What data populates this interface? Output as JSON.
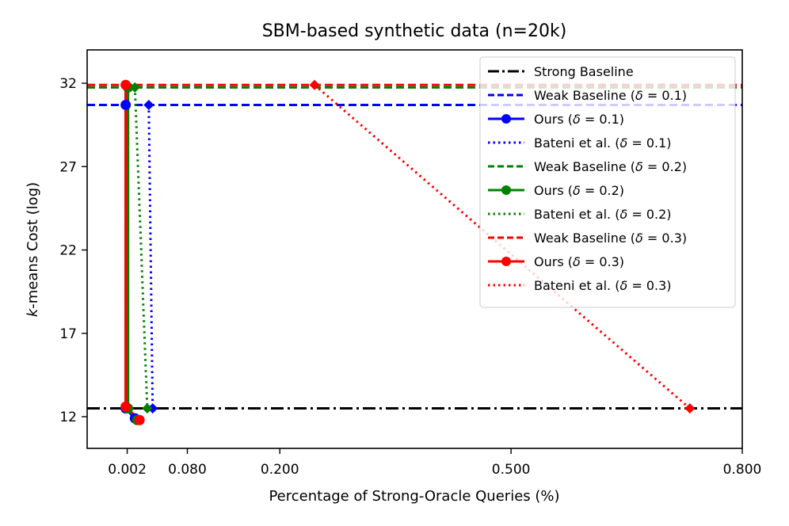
{
  "chart_data": {
    "type": "line",
    "title": "SBM-based synthetic data (n=20k)",
    "xlabel": "Percentage of Strong-Oracle Queries (%)",
    "ylabel": "k-means Cost (log)",
    "ylabel_italic_prefix": "k",
    "ylabel_rest": "-means Cost (log)",
    "x_ticks": [
      "0.002",
      "0.080",
      "0.200",
      "0.500",
      "0.800"
    ],
    "x_tick_values": [
      0.002,
      0.08,
      0.2,
      0.5,
      0.8
    ],
    "y_ticks": [
      "12",
      "17",
      "22",
      "27",
      "32"
    ],
    "y_tick_values": [
      12,
      17,
      22,
      27,
      32
    ],
    "xlim": [
      -0.05,
      0.8
    ],
    "ylim": [
      10.1,
      34.0
    ],
    "grid": false,
    "legend_position": "top-right",
    "series": [
      {
        "name": "Strong Baseline",
        "legend_text": "Strong Baseline",
        "legend_delta": "",
        "color": "#000000",
        "style": "dashdot",
        "marker": "none",
        "hline": 12.5
      },
      {
        "name": "Weak Baseline (δ = 0.1)",
        "legend_text": "Weak Baseline (",
        "legend_delta": "0.1",
        "color": "#0000ff",
        "style": "dashed",
        "marker": "none",
        "hline": 30.7
      },
      {
        "name": "Ours (δ = 0.1)",
        "legend_text": "Ours (",
        "legend_delta": "0.1",
        "color": "#0000ff",
        "style": "solid",
        "marker": "circle",
        "x": [
          0.0,
          0.0,
          0.012
        ],
        "y": [
          30.7,
          12.5,
          11.9
        ]
      },
      {
        "name": "Bateni et al. (δ = 0.1)",
        "legend_text": "Bateni et al. (",
        "legend_delta": "0.1",
        "color": "#0000ff",
        "style": "dotted",
        "marker": "diamond",
        "x": [
          0.03,
          0.035
        ],
        "y": [
          30.7,
          12.5
        ]
      },
      {
        "name": "Weak Baseline (δ = 0.2)",
        "legend_text": "Weak Baseline (",
        "legend_delta": "0.2",
        "color": "#008000",
        "style": "dashed",
        "marker": "none",
        "hline": 31.75
      },
      {
        "name": "Ours (δ = 0.2)",
        "legend_text": "Ours (",
        "legend_delta": "0.2",
        "color": "#008000",
        "style": "solid",
        "marker": "circle",
        "x": [
          0.003,
          0.003,
          0.015
        ],
        "y": [
          31.75,
          12.5,
          11.8
        ]
      },
      {
        "name": "Bateni et al. (δ = 0.2)",
        "legend_text": "Bateni et al. (",
        "legend_delta": "0.2",
        "color": "#008000",
        "style": "dotted",
        "marker": "diamond",
        "x": [
          0.012,
          0.028
        ],
        "y": [
          31.75,
          12.5
        ]
      },
      {
        "name": "Weak Baseline (δ = 0.3)",
        "legend_text": "Weak Baseline (",
        "legend_delta": "0.3",
        "color": "#ff0000",
        "style": "dashed",
        "marker": "none",
        "hline": 31.9
      },
      {
        "name": "Ours (δ = 0.3)",
        "legend_text": "Ours (",
        "legend_delta": "0.3",
        "color": "#ff0000",
        "style": "solid",
        "marker": "circle",
        "x": [
          0.0,
          0.0,
          0.018
        ],
        "y": [
          31.9,
          12.6,
          11.8
        ]
      },
      {
        "name": "Bateni et al. (δ = 0.3)",
        "legend_text": "Bateni et al. (",
        "legend_delta": "0.3",
        "color": "#ff0000",
        "style": "dotted",
        "marker": "diamond",
        "x": [
          0.245,
          0.732
        ],
        "y": [
          31.9,
          12.5
        ]
      }
    ]
  }
}
